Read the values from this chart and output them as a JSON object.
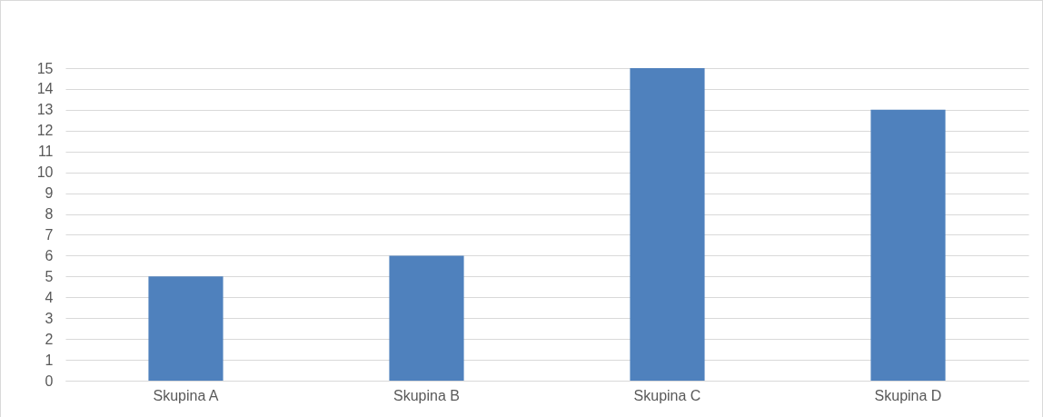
{
  "chart_data": {
    "type": "bar",
    "categories": [
      "Skupina A",
      "Skupina B",
      "Skupina C",
      "Skupina D"
    ],
    "values": [
      5,
      6,
      15,
      13
    ],
    "color": "#4f81bd",
    "ylim": [
      0,
      15
    ],
    "yticks": [
      0,
      1,
      2,
      3,
      4,
      5,
      6,
      7,
      8,
      9,
      10,
      11,
      12,
      13,
      14,
      15
    ],
    "grid": "y"
  }
}
